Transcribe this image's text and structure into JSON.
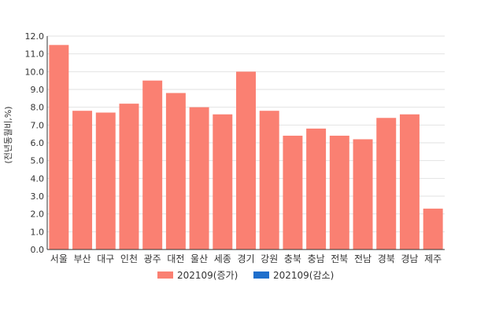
{
  "chart_data": {
    "type": "bar",
    "categories": [
      "서울",
      "부산",
      "대구",
      "인천",
      "광주",
      "대전",
      "울산",
      "세종",
      "경기",
      "강원",
      "충북",
      "충남",
      "전북",
      "전남",
      "경북",
      "경남",
      "제주"
    ],
    "series": [
      {
        "name": "202109(증가)",
        "color": "#fa8072",
        "values": [
          11.5,
          7.8,
          7.7,
          8.2,
          9.5,
          8.8,
          8.0,
          7.6,
          10.0,
          7.8,
          6.4,
          6.8,
          6.4,
          6.2,
          7.4,
          7.6,
          2.3
        ]
      },
      {
        "name": "202109(감소)",
        "color": "#1f6fcc",
        "values": [
          null,
          null,
          null,
          null,
          null,
          null,
          null,
          null,
          null,
          null,
          null,
          null,
          null,
          null,
          null,
          null,
          null
        ]
      }
    ],
    "ylabel": "(전년동월비,%)",
    "ylim": [
      0,
      12
    ],
    "yticks": [
      "0.0",
      "1.0",
      "2.0",
      "3.0",
      "4.0",
      "5.0",
      "6.0",
      "7.0",
      "8.0",
      "9.0",
      "10.0",
      "11.0",
      "12.0"
    ],
    "grid": true,
    "legend": "bottom"
  }
}
